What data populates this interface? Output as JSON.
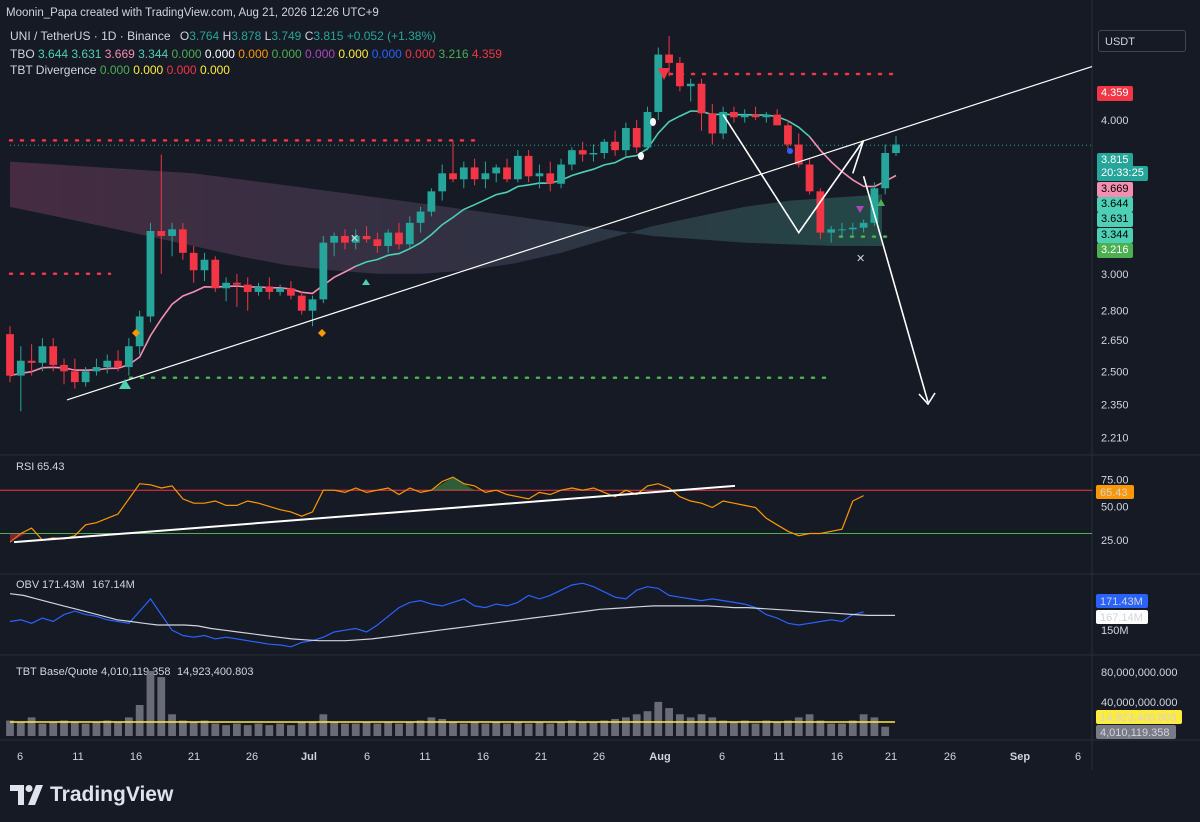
{
  "credit": "Moonin_Papa created with TradingView.com, Aug 21, 2026 12:26 UTC+9",
  "header": {
    "symbol": "UNI / TetherUS · 1D · Binance",
    "o_label": "O",
    "o": "3.764",
    "h_label": "H",
    "h": "3.878",
    "l_label": "L",
    "l": "3.749",
    "c_label": "C",
    "c": "3.815",
    "change": "+0.052 (+1.38%)",
    "tbo_label": "TBO",
    "tbo_values": [
      {
        "v": "3.644",
        "color": "#4dd0b5"
      },
      {
        "v": "3.631",
        "color": "#4dd0b5"
      },
      {
        "v": "3.669",
        "color": "#f48fb1"
      },
      {
        "v": "3.344",
        "color": "#4dd0b5"
      },
      {
        "v": "0.000",
        "color": "#4caf50"
      },
      {
        "v": "0.000",
        "color": "#ffffff"
      },
      {
        "v": "0.000",
        "color": "#ff9800"
      },
      {
        "v": "0.000",
        "color": "#4caf50"
      },
      {
        "v": "0.000",
        "color": "#ab47bc"
      },
      {
        "v": "0.000",
        "color": "#ffeb3b"
      },
      {
        "v": "0.000",
        "color": "#2962ff"
      },
      {
        "v": "0.000",
        "color": "#f23645"
      },
      {
        "v": "3.216",
        "color": "#4caf50"
      },
      {
        "v": "4.359",
        "color": "#f23645"
      }
    ],
    "tbt_label": "TBT Divergence",
    "tbt_values": [
      {
        "v": "0.000",
        "color": "#4caf50"
      },
      {
        "v": "0.000",
        "color": "#ffeb3b"
      },
      {
        "v": "0.000",
        "color": "#f23645"
      },
      {
        "v": "0.000",
        "color": "#ffeb3b"
      }
    ]
  },
  "currency_button": "USDT",
  "price_labels": [
    {
      "text": "4.359",
      "bg": "#f23645",
      "color": "#ffffff",
      "y": 93
    },
    {
      "text": "3.815",
      "bg": "#26a69a",
      "color": "#ffffff",
      "y": 160
    },
    {
      "text": "20:33:25",
      "bg": "#26a69a",
      "color": "#ffffff",
      "y": 173
    },
    {
      "text": "3.669",
      "bg": "#f48fb1",
      "color": "#000000",
      "y": 189
    },
    {
      "text": "3.644",
      "bg": "#4dd0b5",
      "color": "#000000",
      "y": 204
    },
    {
      "text": "3.631",
      "bg": "#4dd0b5",
      "color": "#000000",
      "y": 219
    },
    {
      "text": "3.344",
      "bg": "#4dd0b5",
      "color": "#000000",
      "y": 235
    },
    {
      "text": "3.216",
      "bg": "#4caf50",
      "color": "#ffffff",
      "y": 250
    }
  ],
  "rsi": {
    "label": "RSI",
    "value": "65.43",
    "value_color": "#ff9800",
    "levels": [
      "75.00",
      "50.00",
      "25.00"
    ]
  },
  "obv": {
    "label": "OBV",
    "v1": "171.43M",
    "v1_color": "#2962ff",
    "v2": "167.14M",
    "v2_color": "#ffffff",
    "tick": "150M"
  },
  "vol": {
    "label": "TBT Base/Quote",
    "v1": "4,010,119.358",
    "v1_color": "#787b86",
    "v2": "14,923,400.803",
    "v2_color": "#ffeb3b",
    "ticks": [
      "80,000,000.000",
      "40,000,000.000"
    ]
  },
  "logo_text": "TradingView",
  "chart_data": {
    "type": "candlestick",
    "symbol": "UNI / TetherUS",
    "interval": "1D",
    "price_axis_ticks": [
      4.0,
      3.0,
      2.8,
      2.65,
      2.5,
      2.35,
      2.21
    ],
    "x_ticks": [
      "6",
      "11",
      "16",
      "21",
      "26",
      "Jul",
      "6",
      "11",
      "16",
      "21",
      "26",
      "Aug",
      "6",
      "11",
      "16",
      "21",
      "26",
      "Sep",
      "6"
    ],
    "ylim": [
      2.15,
      4.75
    ],
    "log_scale": true,
    "candles": [
      [
        2.68,
        2.72,
        2.45,
        2.48
      ],
      [
        2.48,
        2.62,
        2.32,
        2.55
      ],
      [
        2.55,
        2.63,
        2.48,
        2.54
      ],
      [
        2.54,
        2.66,
        2.5,
        2.62
      ],
      [
        2.62,
        2.66,
        2.5,
        2.53
      ],
      [
        2.53,
        2.56,
        2.44,
        2.5
      ],
      [
        2.5,
        2.56,
        2.42,
        2.45
      ],
      [
        2.45,
        2.52,
        2.43,
        2.5
      ],
      [
        2.5,
        2.56,
        2.48,
        2.52
      ],
      [
        2.52,
        2.58,
        2.49,
        2.55
      ],
      [
        2.55,
        2.6,
        2.5,
        2.52
      ],
      [
        2.52,
        2.66,
        2.48,
        2.62
      ],
      [
        2.62,
        2.8,
        2.58,
        2.77
      ],
      [
        2.77,
        3.3,
        2.74,
        3.25
      ],
      [
        3.25,
        3.75,
        3.0,
        3.22
      ],
      [
        3.22,
        3.3,
        3.1,
        3.26
      ],
      [
        3.26,
        3.3,
        3.08,
        3.12
      ],
      [
        3.12,
        3.16,
        2.95,
        3.02
      ],
      [
        3.02,
        3.12,
        2.96,
        3.08
      ],
      [
        3.08,
        3.1,
        2.9,
        2.92
      ],
      [
        2.92,
        2.98,
        2.85,
        2.95
      ],
      [
        2.95,
        3.0,
        2.82,
        2.94
      ],
      [
        2.94,
        2.98,
        2.8,
        2.9
      ],
      [
        2.9,
        2.95,
        2.88,
        2.93
      ],
      [
        2.93,
        2.98,
        2.86,
        2.9
      ],
      [
        2.9,
        2.94,
        2.88,
        2.92
      ],
      [
        2.92,
        2.96,
        2.86,
        2.88
      ],
      [
        2.88,
        2.9,
        2.78,
        2.8
      ],
      [
        2.8,
        2.88,
        2.72,
        2.86
      ],
      [
        2.86,
        3.22,
        2.84,
        3.18
      ],
      [
        3.18,
        3.24,
        3.1,
        3.22
      ],
      [
        3.22,
        3.26,
        3.14,
        3.18
      ],
      [
        3.18,
        3.26,
        3.14,
        3.22
      ],
      [
        3.22,
        3.28,
        3.18,
        3.2
      ],
      [
        3.2,
        3.24,
        3.12,
        3.16
      ],
      [
        3.16,
        3.26,
        3.12,
        3.24
      ],
      [
        3.24,
        3.3,
        3.14,
        3.17
      ],
      [
        3.17,
        3.34,
        3.15,
        3.3
      ],
      [
        3.3,
        3.4,
        3.24,
        3.37
      ],
      [
        3.37,
        3.52,
        3.34,
        3.5
      ],
      [
        3.5,
        3.68,
        3.44,
        3.62
      ],
      [
        3.62,
        3.85,
        3.56,
        3.58
      ],
      [
        3.58,
        3.7,
        3.52,
        3.66
      ],
      [
        3.66,
        3.72,
        3.54,
        3.58
      ],
      [
        3.58,
        3.7,
        3.52,
        3.62
      ],
      [
        3.62,
        3.68,
        3.56,
        3.66
      ],
      [
        3.66,
        3.72,
        3.56,
        3.58
      ],
      [
        3.58,
        3.78,
        3.56,
        3.74
      ],
      [
        3.74,
        3.78,
        3.56,
        3.6
      ],
      [
        3.6,
        3.68,
        3.52,
        3.62
      ],
      [
        3.62,
        3.7,
        3.5,
        3.55
      ],
      [
        3.55,
        3.72,
        3.52,
        3.68
      ],
      [
        3.68,
        3.8,
        3.64,
        3.78
      ],
      [
        3.78,
        3.84,
        3.7,
        3.75
      ],
      [
        3.75,
        3.82,
        3.7,
        3.76
      ],
      [
        3.76,
        3.86,
        3.72,
        3.84
      ],
      [
        3.84,
        3.92,
        3.74,
        3.78
      ],
      [
        3.78,
        3.98,
        3.74,
        3.94
      ],
      [
        3.94,
        4.0,
        3.76,
        3.8
      ],
      [
        3.8,
        4.1,
        3.78,
        4.06
      ],
      [
        4.06,
        4.58,
        4.0,
        4.52
      ],
      [
        4.52,
        4.68,
        4.34,
        4.45
      ],
      [
        4.45,
        4.5,
        4.22,
        4.26
      ],
      [
        4.26,
        4.32,
        4.14,
        4.28
      ],
      [
        4.28,
        4.32,
        3.92,
        4.05
      ],
      [
        4.05,
        4.12,
        3.82,
        3.9
      ],
      [
        3.9,
        4.1,
        3.86,
        4.06
      ],
      [
        4.06,
        4.1,
        3.98,
        4.02
      ],
      [
        4.02,
        4.08,
        3.98,
        4.04
      ],
      [
        4.04,
        4.1,
        4.0,
        4.02
      ],
      [
        4.02,
        4.06,
        3.98,
        4.04
      ],
      [
        4.04,
        4.08,
        3.96,
        3.96
      ],
      [
        3.96,
        4.0,
        3.78,
        3.82
      ],
      [
        3.82,
        3.9,
        3.66,
        3.68
      ],
      [
        3.68,
        3.72,
        3.48,
        3.5
      ],
      [
        3.5,
        3.52,
        3.2,
        3.24
      ],
      [
        3.24,
        3.28,
        3.18,
        3.26
      ],
      [
        3.26,
        3.3,
        3.22,
        3.26
      ],
      [
        3.26,
        3.3,
        3.22,
        3.27
      ],
      [
        3.27,
        3.32,
        3.24,
        3.3
      ],
      [
        3.3,
        3.56,
        3.28,
        3.52
      ],
      [
        3.52,
        3.82,
        3.48,
        3.76
      ],
      [
        3.76,
        3.88,
        3.74,
        3.82
      ]
    ],
    "ema_band_top": [
      3.7,
      3.68,
      3.66,
      3.64,
      3.62,
      3.58,
      3.54,
      3.5,
      3.46,
      3.42,
      3.38,
      3.34,
      3.3,
      3.26,
      3.22,
      3.2,
      3.18,
      3.17,
      3.16,
      3.16
    ],
    "ema_band_bottom": [
      3.4,
      3.34,
      3.28,
      3.22,
      3.16,
      3.1,
      3.05,
      3.02,
      3.0,
      3.0,
      3.02,
      3.06,
      3.12,
      3.2,
      3.28,
      3.34,
      3.4,
      3.44,
      3.46,
      3.48
    ],
    "horizontal_levels": [
      {
        "name": "resistance-dots",
        "value": 4.359,
        "color": "#f23645"
      },
      {
        "name": "resistance-dots-2",
        "value": 3.85,
        "color": "#f23645"
      },
      {
        "name": "resistance-dots-3",
        "value": 3.0,
        "color": "#f23645"
      },
      {
        "name": "support-dots",
        "value": 2.47,
        "color": "#4caf50"
      },
      {
        "name": "support-dots-2",
        "value": 3.216,
        "color": "#4caf50"
      }
    ],
    "rsi_values": [
      22,
      30,
      35,
      24,
      26,
      25,
      28,
      38,
      40,
      44,
      48,
      62,
      76,
      75,
      72,
      74,
      62,
      58,
      58,
      60,
      56,
      56,
      60,
      58,
      55,
      52,
      50,
      46,
      50,
      70,
      70,
      68,
      72,
      68,
      70,
      72,
      66,
      72,
      68,
      70,
      78,
      82,
      76,
      74,
      68,
      70,
      66,
      64,
      62,
      68,
      66,
      70,
      72,
      70,
      72,
      68,
      64,
      70,
      66,
      74,
      76,
      72,
      64,
      60,
      58,
      54,
      60,
      58,
      56,
      54,
      44,
      38,
      32,
      28,
      30,
      30,
      32,
      34,
      60,
      65
    ],
    "obv_values": [
      160,
      162,
      158,
      164,
      160,
      168,
      172,
      168,
      166,
      162,
      160,
      158,
      172,
      186,
      168,
      150,
      144,
      142,
      144,
      140,
      142,
      140,
      138,
      136,
      134,
      133,
      131,
      136,
      138,
      142,
      148,
      150,
      152,
      148,
      156,
      166,
      176,
      182,
      184,
      180,
      178,
      182,
      186,
      178,
      176,
      180,
      178,
      182,
      190,
      186,
      190,
      196,
      202,
      204,
      200,
      194,
      188,
      186,
      196,
      200,
      198,
      190,
      188,
      186,
      184,
      186,
      184,
      182,
      180,
      176,
      168,
      164,
      158,
      156,
      158,
      160,
      162,
      160,
      168,
      171
    ],
    "obv_ma_values": [
      192,
      190,
      186,
      182,
      178,
      174,
      170,
      166,
      162,
      160,
      158,
      156,
      156,
      156,
      155,
      152,
      150,
      148,
      146,
      144,
      142,
      140,
      139,
      138,
      138,
      138,
      139,
      140,
      142,
      144,
      146,
      148,
      150,
      152,
      154,
      156,
      158,
      160,
      162,
      164,
      166,
      168,
      170,
      172,
      174,
      175,
      176,
      177,
      178,
      178,
      178,
      178,
      178,
      177,
      176,
      176,
      175,
      174,
      173,
      172,
      171,
      170,
      169,
      168,
      167,
      167,
      167
    ]
  }
}
